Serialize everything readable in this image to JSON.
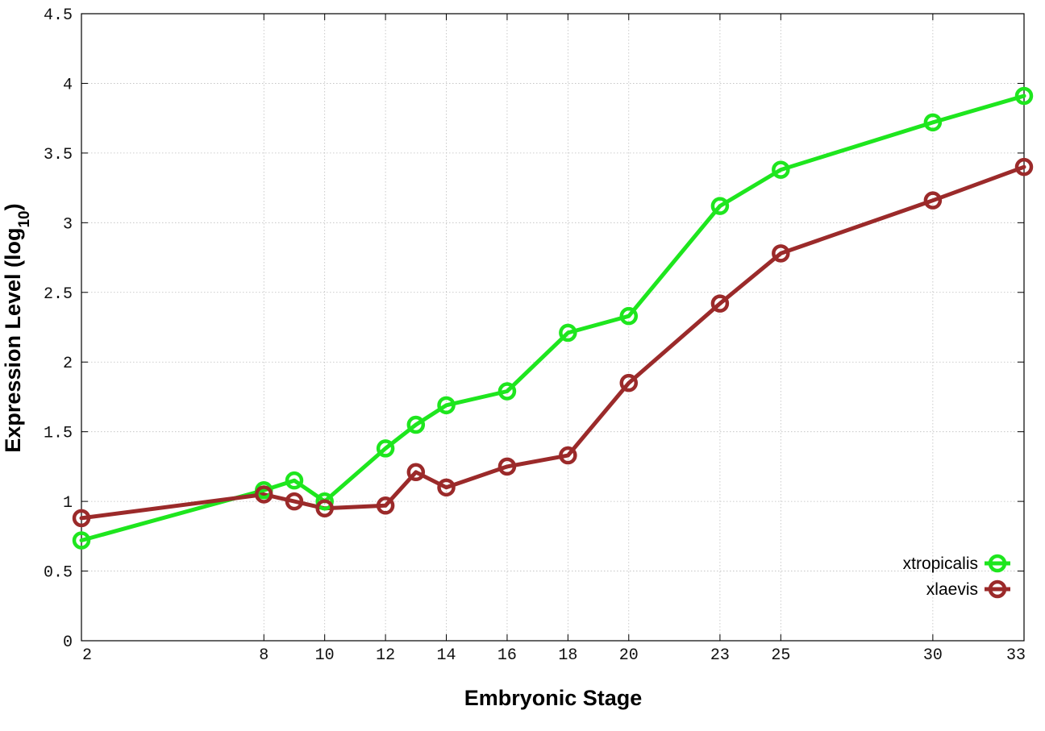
{
  "chart_data": {
    "type": "line",
    "title": "",
    "xlabel": "Embryonic Stage",
    "ylabel": {
      "main": "Expression Level (log",
      "sub": "10",
      "close": ")"
    },
    "x": [
      2,
      8,
      9,
      10,
      12,
      13,
      14,
      16,
      18,
      20,
      23,
      25,
      30,
      33
    ],
    "xticks": [
      2,
      8,
      10,
      12,
      14,
      16,
      18,
      20,
      23,
      25,
      30,
      33
    ],
    "xlim": [
      2,
      33
    ],
    "ylim": [
      0,
      4.5
    ],
    "yticks": [
      0,
      0.5,
      1,
      1.5,
      2,
      2.5,
      3,
      3.5,
      4,
      4.5
    ],
    "ytick_labels": [
      "0",
      "0.5",
      "1",
      "1.5",
      "2",
      "2.5",
      "3",
      "3.5",
      "4",
      "4.5"
    ],
    "grid": true,
    "legend_position": "bottom-right",
    "series": [
      {
        "name": "xtropicalis",
        "color": "#1ee61e",
        "marker": "open-circle",
        "values": [
          0.72,
          1.08,
          1.15,
          1.0,
          1.38,
          1.55,
          1.69,
          1.79,
          2.21,
          2.33,
          3.12,
          3.38,
          3.72,
          3.91
        ]
      },
      {
        "name": "xlaevis",
        "color": "#9b2a2a",
        "marker": "open-circle",
        "values": [
          0.88,
          1.05,
          1.0,
          0.95,
          0.97,
          1.21,
          1.1,
          1.25,
          1.33,
          1.85,
          2.42,
          2.78,
          3.16,
          3.4
        ]
      }
    ]
  }
}
